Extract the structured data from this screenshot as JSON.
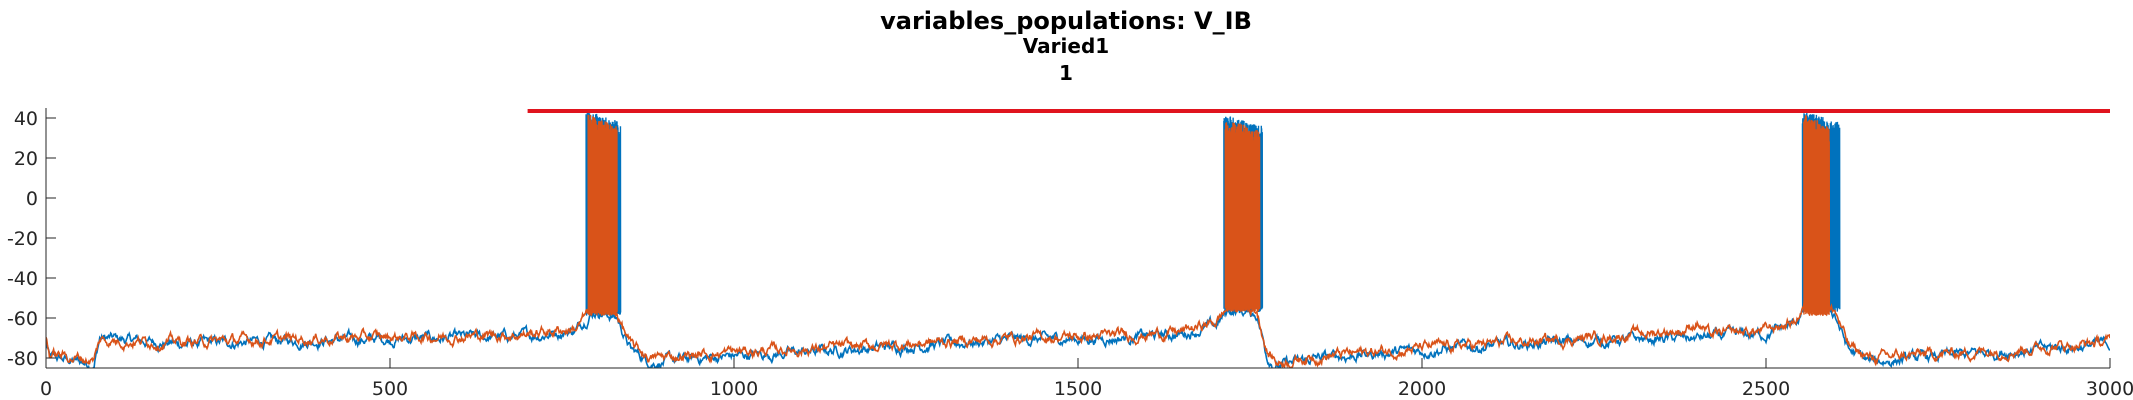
{
  "chart_data": {
    "type": "line",
    "title": "variables_populations: V_IB",
    "subtitle_lines": [
      "Varied1",
      "1"
    ],
    "xlabel": "",
    "ylabel": "",
    "xlim": [
      0,
      3000
    ],
    "ylim": [
      -85,
      45
    ],
    "xticks": [
      0,
      500,
      1000,
      1500,
      2000,
      2500,
      3000
    ],
    "yticks": [
      -80,
      -60,
      -40,
      -20,
      0,
      20,
      40
    ],
    "grid": false,
    "legend": "none",
    "marker_line": {
      "x": [
        700,
        3000
      ],
      "y": 43.5,
      "color": "#e0141e"
    },
    "series": [
      {
        "color": "#0072bd",
        "baseline": [
          [
            0,
            -72
          ],
          [
            5,
            -80
          ],
          [
            70,
            -83
          ],
          [
            78,
            -70
          ],
          [
            200,
            -73
          ],
          [
            400,
            -71
          ],
          [
            600,
            -70
          ],
          [
            700,
            -69
          ],
          [
            770,
            -66
          ],
          [
            790,
            -58
          ],
          [
            800,
            -56
          ],
          [
            830,
            -60
          ],
          [
            850,
            -76
          ],
          [
            880,
            -82
          ],
          [
            1000,
            -79
          ],
          [
            1200,
            -75
          ],
          [
            1400,
            -71
          ],
          [
            1550,
            -70
          ],
          [
            1650,
            -68
          ],
          [
            1700,
            -64
          ],
          [
            1720,
            -56
          ],
          [
            1760,
            -58
          ],
          [
            1775,
            -79
          ],
          [
            1790,
            -84
          ],
          [
            1850,
            -80
          ],
          [
            2000,
            -76
          ],
          [
            2200,
            -72
          ],
          [
            2400,
            -70
          ],
          [
            2500,
            -68
          ],
          [
            2540,
            -63
          ],
          [
            2560,
            -55
          ],
          [
            2600,
            -58
          ],
          [
            2620,
            -76
          ],
          [
            2650,
            -82
          ],
          [
            2800,
            -78
          ],
          [
            3000,
            -73
          ]
        ],
        "bursts": [
          [
            785,
            835,
            44,
            -56
          ],
          [
            1712,
            1768,
            42,
            -54
          ],
          [
            2553,
            2607,
            44,
            -54
          ]
        ]
      },
      {
        "color": "#d95319",
        "baseline": [
          [
            0,
            -70
          ],
          [
            5,
            -78
          ],
          [
            70,
            -81
          ],
          [
            78,
            -71
          ],
          [
            200,
            -72
          ],
          [
            400,
            -70
          ],
          [
            600,
            -69
          ],
          [
            700,
            -68
          ],
          [
            770,
            -65
          ],
          [
            790,
            -57
          ],
          [
            800,
            -55
          ],
          [
            830,
            -58
          ],
          [
            850,
            -74
          ],
          [
            880,
            -80
          ],
          [
            1000,
            -77
          ],
          [
            1200,
            -74
          ],
          [
            1400,
            -70
          ],
          [
            1550,
            -69
          ],
          [
            1650,
            -67
          ],
          [
            1700,
            -62
          ],
          [
            1720,
            -54
          ],
          [
            1760,
            -56
          ],
          [
            1775,
            -77
          ],
          [
            1790,
            -82
          ],
          [
            1850,
            -79
          ],
          [
            2000,
            -75
          ],
          [
            2200,
            -71
          ],
          [
            2380,
            -66
          ],
          [
            2400,
            -62
          ],
          [
            2420,
            -69
          ],
          [
            2500,
            -66
          ],
          [
            2540,
            -62
          ],
          [
            2560,
            -53
          ],
          [
            2600,
            -56
          ],
          [
            2620,
            -74
          ],
          [
            2650,
            -80
          ],
          [
            2800,
            -77
          ],
          [
            3000,
            -72
          ]
        ],
        "bursts": [
          [
            788,
            830,
            42,
            -56
          ],
          [
            1714,
            1764,
            40,
            -54
          ],
          [
            2555,
            2592,
            42,
            -56
          ]
        ]
      }
    ]
  }
}
